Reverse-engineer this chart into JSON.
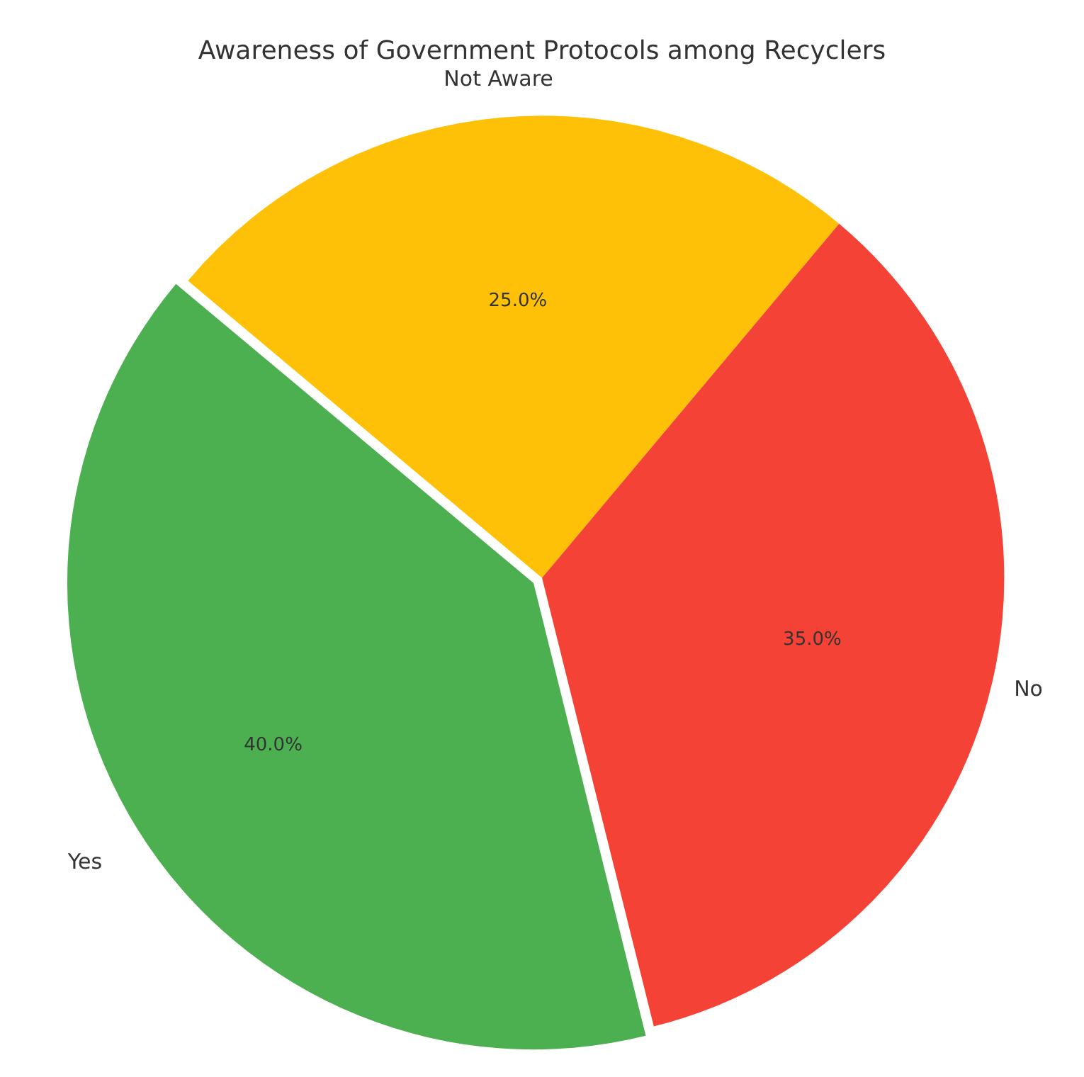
{
  "chart_data": {
    "type": "pie",
    "title": "Awareness of Government Protocols among Recyclers",
    "categories": [
      "Not Aware",
      "No",
      "Yes"
    ],
    "values": [
      25,
      35,
      40
    ],
    "colors": [
      "#ffc107",
      "#f44336",
      "#4caf50"
    ],
    "value_labels": [
      "25.0%",
      "35.0%",
      "40.0%"
    ],
    "legend": false
  }
}
